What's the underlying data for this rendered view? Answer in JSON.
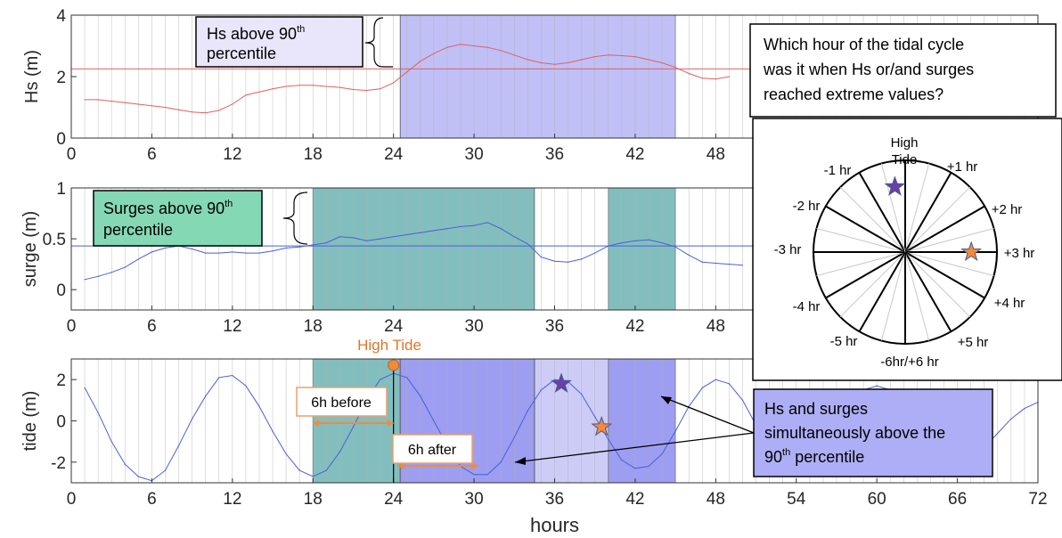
{
  "chart_data": [
    {
      "type": "line",
      "ylabel": "Hs (m)",
      "xlim": [
        0,
        72
      ],
      "ylim": [
        0,
        4
      ],
      "xticks": [
        0,
        6,
        12,
        18,
        24,
        30,
        36,
        42,
        48,
        54,
        60,
        66,
        72
      ],
      "yticks": [
        0,
        2,
        4
      ],
      "grid": "vertical line every hour",
      "threshold": 2.25,
      "highlight_windows": [
        [
          24.5,
          45
        ]
      ],
      "series": [
        {
          "color": "#e06060",
          "x": [
            1,
            2,
            3,
            4,
            5,
            6,
            7,
            8,
            9,
            10,
            11,
            12,
            13,
            14,
            15,
            16,
            17,
            18,
            19,
            20,
            21,
            22,
            23,
            24,
            25,
            26,
            27,
            28,
            29,
            30,
            31,
            32,
            33,
            34,
            35,
            36,
            37,
            38,
            39,
            40,
            41,
            42,
            43,
            44,
            45,
            46,
            47,
            48,
            49
          ],
          "y": [
            1.25,
            1.25,
            1.2,
            1.15,
            1.1,
            1.05,
            1.0,
            0.92,
            0.85,
            0.82,
            0.9,
            1.1,
            1.4,
            1.5,
            1.6,
            1.68,
            1.72,
            1.72,
            1.68,
            1.65,
            1.58,
            1.55,
            1.6,
            1.8,
            2.15,
            2.5,
            2.75,
            2.95,
            3.05,
            3.0,
            2.95,
            2.85,
            2.7,
            2.55,
            2.45,
            2.4,
            2.45,
            2.55,
            2.65,
            2.7,
            2.68,
            2.65,
            2.55,
            2.45,
            2.3,
            2.1,
            1.95,
            1.92,
            2.0
          ]
        }
      ]
    },
    {
      "type": "line",
      "ylabel": "surge (m)",
      "xlim": [
        0,
        72
      ],
      "ylim": [
        -0.2,
        1
      ],
      "xticks": [
        0,
        6,
        12,
        18,
        24,
        30,
        36,
        42,
        48,
        54,
        60,
        66,
        72
      ],
      "yticks": [
        0,
        0.5,
        1
      ],
      "threshold": 0.43,
      "highlight_windows": [
        [
          18,
          34.5
        ],
        [
          40,
          45
        ]
      ],
      "series": [
        {
          "color": "#4a5fd8",
          "x": [
            1,
            2,
            3,
            4,
            5,
            6,
            7,
            8,
            9,
            10,
            11,
            12,
            13,
            14,
            15,
            16,
            17,
            18,
            19,
            20,
            21,
            22,
            23,
            24,
            25,
            26,
            27,
            28,
            29,
            30,
            31,
            32,
            33,
            34,
            35,
            36,
            37,
            38,
            39,
            40,
            41,
            42,
            43,
            44,
            45,
            46,
            47,
            48,
            49,
            50
          ],
          "y": [
            0.1,
            0.13,
            0.17,
            0.22,
            0.3,
            0.37,
            0.41,
            0.43,
            0.4,
            0.36,
            0.36,
            0.37,
            0.36,
            0.36,
            0.38,
            0.41,
            0.42,
            0.44,
            0.46,
            0.52,
            0.51,
            0.48,
            0.5,
            0.52,
            0.54,
            0.56,
            0.58,
            0.6,
            0.62,
            0.63,
            0.66,
            0.6,
            0.52,
            0.45,
            0.32,
            0.28,
            0.27,
            0.3,
            0.36,
            0.43,
            0.46,
            0.48,
            0.49,
            0.46,
            0.42,
            0.34,
            0.27,
            0.26,
            0.25,
            0.24
          ]
        }
      ]
    },
    {
      "type": "line",
      "ylabel": "tide (m)",
      "xlabel": "hours",
      "xlim": [
        0,
        72
      ],
      "ylim": [
        -3,
        3
      ],
      "xticks": [
        0,
        6,
        12,
        18,
        24,
        30,
        36,
        42,
        48,
        54,
        60,
        66,
        72
      ],
      "xtick_labels": [
        "0",
        "6",
        "12",
        "18",
        "24",
        "30",
        "36",
        "42",
        "48",
        "54",
        "60",
        "66",
        "72"
      ],
      "yticks": [
        -2,
        0,
        2
      ],
      "highlight_windows": {
        "teal": [
          [
            18,
            24.5
          ]
        ],
        "purple_dark": [
          [
            24.5,
            34.5
          ],
          [
            40,
            45
          ]
        ],
        "purple_light": [
          [
            34.5,
            40
          ]
        ]
      },
      "series": [
        {
          "color": "#4a5fd8",
          "x": [
            1,
            2,
            3,
            4,
            5,
            6,
            7,
            8,
            9,
            10,
            11,
            12,
            13,
            14,
            15,
            16,
            17,
            18,
            19,
            20,
            21,
            22,
            23,
            24,
            25,
            26,
            27,
            28,
            29,
            30,
            31,
            32,
            33,
            34,
            35,
            36,
            37,
            38,
            39,
            40,
            41,
            42,
            43,
            44,
            45,
            46,
            47,
            48,
            49,
            50,
            51,
            52,
            53,
            54,
            55,
            56,
            57,
            58,
            59,
            60,
            61,
            62,
            63,
            64,
            65,
            66,
            67,
            68,
            69,
            70,
            71,
            72
          ],
          "y": [
            1.6,
            0.4,
            -1.0,
            -2.1,
            -2.7,
            -2.9,
            -2.4,
            -1.2,
            0.1,
            1.2,
            2.1,
            2.2,
            1.7,
            0.7,
            -0.5,
            -1.6,
            -2.4,
            -2.7,
            -2.4,
            -1.5,
            -0.3,
            1.0,
            2.0,
            2.3,
            2.1,
            1.2,
            0.0,
            -1.2,
            -2.2,
            -2.6,
            -2.6,
            -2.0,
            -0.8,
            0.5,
            1.5,
            2.0,
            1.9,
            1.3,
            0.2,
            -0.9,
            -1.9,
            -2.3,
            -2.2,
            -1.6,
            -0.5,
            0.7,
            1.6,
            2.0,
            1.8,
            1.0,
            -0.2,
            -1.3,
            -2.1,
            -2.4,
            -2.2,
            -1.4,
            -0.3,
            0.8,
            1.5,
            1.7,
            1.5,
            0.8,
            -0.1,
            -1.0,
            -1.6,
            -1.8,
            -1.7,
            -1.3,
            -0.6,
            0.1,
            0.6,
            0.9
          ]
        }
      ],
      "markers": [
        {
          "kind": "circle",
          "x": 24,
          "y": 2.7,
          "color": "#f08a3c"
        },
        {
          "kind": "star",
          "x": 36.5,
          "y": 1.8,
          "color": "#6a3fa8"
        },
        {
          "kind": "star",
          "x": 39.5,
          "y": -0.3,
          "color": "#f08a3c"
        }
      ]
    }
  ],
  "annotations": {
    "hs_box_text": "Hs above 90",
    "hs_box_sup": "th",
    "hs_box_text2": "percentile",
    "surge_box_text": "Surges above 90",
    "surge_box_sup": "th",
    "surge_box_text2": "percentile",
    "question_lines": [
      "Which hour of the tidal cycle",
      "was it when Hs or/and surges",
      "reached extreme values?"
    ],
    "high_tide_label": "High Tide",
    "before_label": "6h before",
    "after_label": "6h after",
    "combined_lines": [
      "Hs and surges",
      "simultaneously above the"
    ],
    "combined_line3": "90",
    "combined_sup": "th",
    "combined_line3b": " percentile"
  },
  "clock": {
    "top_label_1": "High",
    "top_label_2": "Tide",
    "labels": [
      "-1 hr",
      "+1 hr",
      "-2 hr",
      "+2 hr",
      "-3 hr",
      "+3 hr",
      "-4 hr",
      "+4 hr",
      "-5 hr",
      "+5 hr",
      "-6hr/+6 hr"
    ],
    "stars": [
      {
        "color": "#6a3fa8",
        "hour": -0.3
      },
      {
        "color": "#f08a3c",
        "hour": 3
      }
    ]
  },
  "colors": {
    "hs_line": "#e06060",
    "surge_line": "#4a5fd8",
    "teal_fill": "#5aa8a8",
    "purple_fill": "#8c8cf0",
    "purple_light": "#c6c6f6",
    "orange": "#f08a3c",
    "star_purple": "#6a3fa8"
  }
}
